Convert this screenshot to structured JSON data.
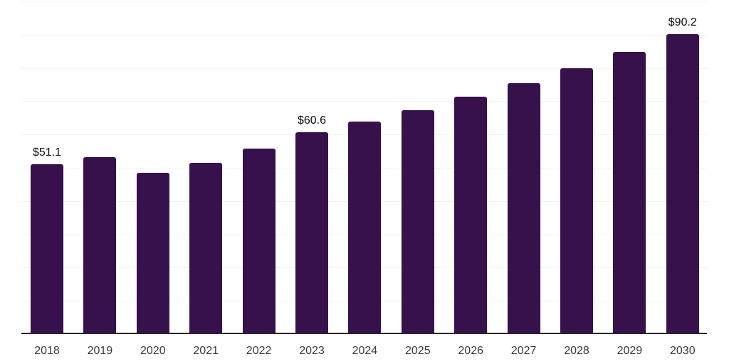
{
  "chart_data": {
    "type": "bar",
    "title": "",
    "xlabel": "",
    "ylabel": "",
    "categories": [
      "2018",
      "2019",
      "2020",
      "2021",
      "2022",
      "2023",
      "2024",
      "2025",
      "2026",
      "2027",
      "2028",
      "2029",
      "2030"
    ],
    "values": [
      51.1,
      53.2,
      48.6,
      51.5,
      55.7,
      60.6,
      63.8,
      67.3,
      71.3,
      75.5,
      79.9,
      84.8,
      90.2
    ],
    "data_labels": [
      "$51.1",
      null,
      null,
      null,
      null,
      "$60.6",
      null,
      null,
      null,
      null,
      null,
      null,
      "$90.2"
    ],
    "ylim": [
      0,
      100
    ],
    "gridline_step": 10,
    "grid": "horizontal-only",
    "legend_position": "none",
    "y_tick_labels_visible": false,
    "colors": {
      "bar": "#36114B",
      "axis_line": "#262626",
      "gridline": "#f2f2f2",
      "data_label": "#0d0d0d",
      "tick_label": "#3a3a3a",
      "background": "#ffffff"
    }
  }
}
